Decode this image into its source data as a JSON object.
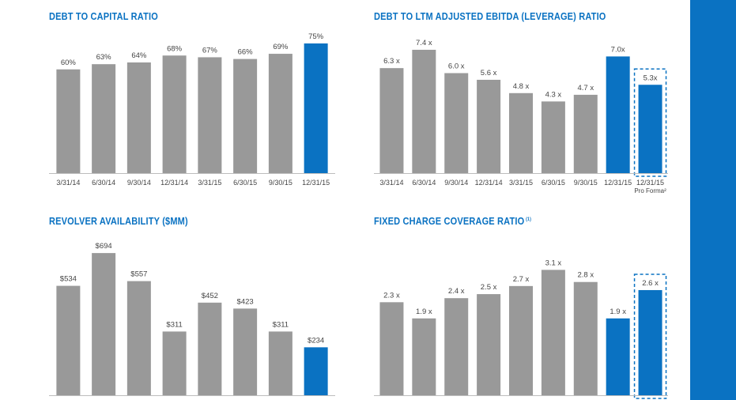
{
  "colors": {
    "bar_gray": "#999999",
    "bar_blue": "#0a72c2",
    "title_blue": "#0a72c2",
    "axis_line": "#bdbdbd",
    "label_text": "#444444",
    "sidebar": "#0a72c2"
  },
  "chart_data": [
    {
      "id": "debt-to-capital",
      "type": "bar",
      "title": "DEBT TO CAPITAL RATIO",
      "title_note": "",
      "categories": [
        "3/31/14",
        "6/30/14",
        "9/30/14",
        "12/31/14",
        "3/31/15",
        "6/30/15",
        "9/30/15",
        "12/31/15"
      ],
      "category_notes": [
        "",
        "",
        "",
        "",
        "",
        "",
        "",
        ""
      ],
      "values": [
        60,
        63,
        64,
        68,
        67,
        66,
        69,
        75
      ],
      "data_labels": [
        "60%",
        "63%",
        "64%",
        "68%",
        "67%",
        "66%",
        "69%",
        "75%"
      ],
      "highlight": [
        false,
        false,
        false,
        false,
        false,
        false,
        false,
        true
      ],
      "dashed": [
        false,
        false,
        false,
        false,
        false,
        false,
        false,
        false
      ],
      "ylim": [
        0,
        80
      ],
      "grid": false,
      "xlabel": "",
      "ylabel": ""
    },
    {
      "id": "debt-to-ebitda",
      "type": "bar",
      "title": "DEBT TO LTM ADJUSTED EBITDA (LEVERAGE) RATIO",
      "title_note": "",
      "categories": [
        "3/31/14",
        "6/30/14",
        "9/30/14",
        "12/31/14",
        "3/31/15",
        "6/30/15",
        "9/30/15",
        "12/31/15",
        "12/31/15"
      ],
      "category_notes": [
        "",
        "",
        "",
        "",
        "",
        "",
        "",
        "",
        "Pro Forma²"
      ],
      "values": [
        6.3,
        7.4,
        6.0,
        5.6,
        4.8,
        4.3,
        4.7,
        7.0,
        5.3
      ],
      "data_labels": [
        "6.3 x",
        "7.4 x",
        "6.0 x",
        "5.6 x",
        "4.8 x",
        "4.3 x",
        "4.7 x",
        "7.0x",
        "5.3x"
      ],
      "highlight": [
        false,
        false,
        false,
        false,
        false,
        false,
        false,
        true,
        true
      ],
      "dashed": [
        false,
        false,
        false,
        false,
        false,
        false,
        false,
        false,
        true
      ],
      "ylim": [
        0,
        8.3
      ],
      "grid": false,
      "xlabel": "",
      "ylabel": ""
    },
    {
      "id": "revolver-availability",
      "type": "bar",
      "title": "REVOLVER AVAILABILITY ($MM)",
      "title_note": "",
      "categories": [
        "",
        "",
        "",
        "",
        "",
        "",
        "",
        ""
      ],
      "category_notes": [
        "",
        "",
        "",
        "",
        "",
        "",
        "",
        ""
      ],
      "values": [
        534,
        694,
        557,
        311,
        452,
        423,
        311,
        234
      ],
      "data_labels": [
        "$534",
        "$694",
        "$557",
        "$311",
        "$452",
        "$423",
        "$311",
        "$234"
      ],
      "highlight": [
        false,
        false,
        false,
        false,
        false,
        false,
        false,
        true
      ],
      "dashed": [
        false,
        false,
        false,
        false,
        false,
        false,
        false,
        false
      ],
      "ylim": [
        0,
        760
      ],
      "grid": false,
      "xlabel": "",
      "ylabel": ""
    },
    {
      "id": "fixed-charge-coverage",
      "type": "bar",
      "title": "FIXED CHARGE COVERAGE RATIO",
      "title_note": "(1)",
      "categories": [
        "",
        "",
        "",
        "",
        "",
        "",
        "",
        "",
        ""
      ],
      "category_notes": [
        "",
        "",
        "",
        "",
        "",
        "",
        "",
        "",
        ""
      ],
      "values": [
        2.3,
        1.9,
        2.4,
        2.5,
        2.7,
        3.1,
        2.8,
        1.9,
        2.6
      ],
      "data_labels": [
        "2.3 x",
        "1.9 x",
        "2.4 x",
        "2.5 x",
        "2.7 x",
        "3.1 x",
        "2.8 x",
        "1.9 x",
        "2.6 x"
      ],
      "highlight": [
        false,
        false,
        false,
        false,
        false,
        false,
        false,
        true,
        true
      ],
      "dashed": [
        false,
        false,
        false,
        false,
        false,
        false,
        false,
        false,
        true
      ],
      "ylim": [
        0,
        3.85
      ],
      "grid": false,
      "xlabel": "",
      "ylabel": ""
    }
  ]
}
